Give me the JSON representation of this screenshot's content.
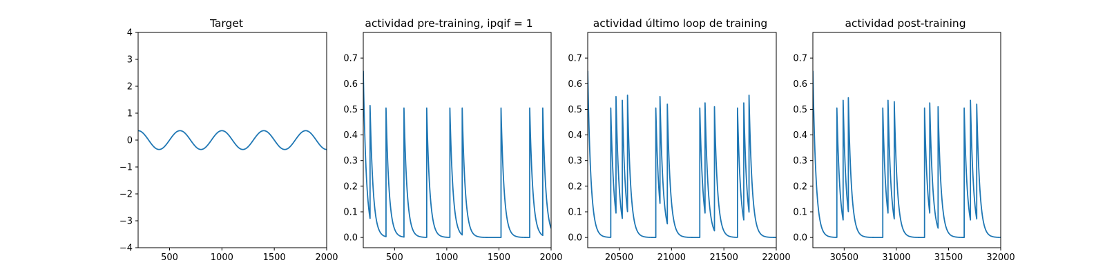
{
  "colors": {
    "line": "#1f77b4",
    "axes": "#000000",
    "background": "#ffffff"
  },
  "chart_data": [
    {
      "type": "line",
      "title": "Target",
      "xlim": [
        200,
        2000
      ],
      "ylim": [
        -4,
        4
      ],
      "xticks": [
        500,
        1000,
        1500,
        2000
      ],
      "yticks": [
        -4,
        -3,
        -2,
        -1,
        0,
        1,
        2,
        3,
        4
      ],
      "grid": false,
      "series": [
        {
          "kind": "sine",
          "amplitude": 0.35,
          "period": 400,
          "phase_zero_x": 300,
          "x_range": [
            200,
            2000
          ]
        }
      ]
    },
    {
      "type": "line",
      "title": "actividad pre-training, ipqif = 1",
      "xlim": [
        200,
        2000
      ],
      "ylim": [
        -0.04,
        0.8
      ],
      "xticks": [
        500,
        1000,
        1500,
        2000
      ],
      "yticks": [
        0.0,
        0.1,
        0.2,
        0.3,
        0.4,
        0.5,
        0.6,
        0.7
      ],
      "grid": false,
      "series": [
        {
          "kind": "spike_decay",
          "initial_value": 0.65,
          "decay_tau": 30,
          "spikes": [
            {
              "x": 265,
              "value": 0.515
            },
            {
              "x": 418,
              "value": 0.505
            },
            {
              "x": 590,
              "value": 0.505
            },
            {
              "x": 808,
              "value": 0.505
            },
            {
              "x": 1030,
              "value": 0.505
            },
            {
              "x": 1148,
              "value": 0.505
            },
            {
              "x": 1520,
              "value": 0.505
            },
            {
              "x": 1795,
              "value": 0.505
            },
            {
              "x": 1920,
              "value": 0.505
            }
          ],
          "x_range": [
            200,
            2000
          ]
        }
      ]
    },
    {
      "type": "line",
      "title": "actividad último loop de training",
      "xlim": [
        20200,
        22000
      ],
      "ylim": [
        -0.04,
        0.8
      ],
      "xticks": [
        20500,
        21000,
        21500,
        22000
      ],
      "yticks": [
        0.0,
        0.1,
        0.2,
        0.3,
        0.4,
        0.5,
        0.6,
        0.7
      ],
      "grid": false,
      "series": [
        {
          "kind": "spike_decay",
          "initial_value": 0.65,
          "decay_tau": 30,
          "spikes": [
            {
              "x": 20420,
              "value": 0.505
            },
            {
              "x": 20470,
              "value": 0.55
            },
            {
              "x": 20530,
              "value": 0.535
            },
            {
              "x": 20580,
              "value": 0.555
            },
            {
              "x": 20850,
              "value": 0.505
            },
            {
              "x": 20890,
              "value": 0.55
            },
            {
              "x": 20960,
              "value": 0.52
            },
            {
              "x": 21270,
              "value": 0.505
            },
            {
              "x": 21320,
              "value": 0.525
            },
            {
              "x": 21410,
              "value": 0.51
            },
            {
              "x": 21630,
              "value": 0.505
            },
            {
              "x": 21690,
              "value": 0.525
            },
            {
              "x": 21740,
              "value": 0.555
            }
          ],
          "x_range": [
            20200,
            22000
          ]
        }
      ]
    },
    {
      "type": "line",
      "title": "actividad post-training",
      "xlim": [
        30200,
        32000
      ],
      "ylim": [
        -0.04,
        0.8
      ],
      "xticks": [
        30500,
        31000,
        31500,
        32000
      ],
      "yticks": [
        0.0,
        0.1,
        0.2,
        0.3,
        0.4,
        0.5,
        0.6,
        0.7
      ],
      "grid": false,
      "series": [
        {
          "kind": "spike_decay",
          "initial_value": 0.65,
          "decay_tau": 30,
          "spikes": [
            {
              "x": 30430,
              "value": 0.505
            },
            {
              "x": 30490,
              "value": 0.535
            },
            {
              "x": 30540,
              "value": 0.545
            },
            {
              "x": 30870,
              "value": 0.505
            },
            {
              "x": 30920,
              "value": 0.535
            },
            {
              "x": 30980,
              "value": 0.53
            },
            {
              "x": 31270,
              "value": 0.505
            },
            {
              "x": 31320,
              "value": 0.525
            },
            {
              "x": 31400,
              "value": 0.51
            },
            {
              "x": 31650,
              "value": 0.505
            },
            {
              "x": 31710,
              "value": 0.535
            },
            {
              "x": 31770,
              "value": 0.52
            }
          ],
          "x_range": [
            30200,
            32000
          ]
        }
      ]
    }
  ]
}
